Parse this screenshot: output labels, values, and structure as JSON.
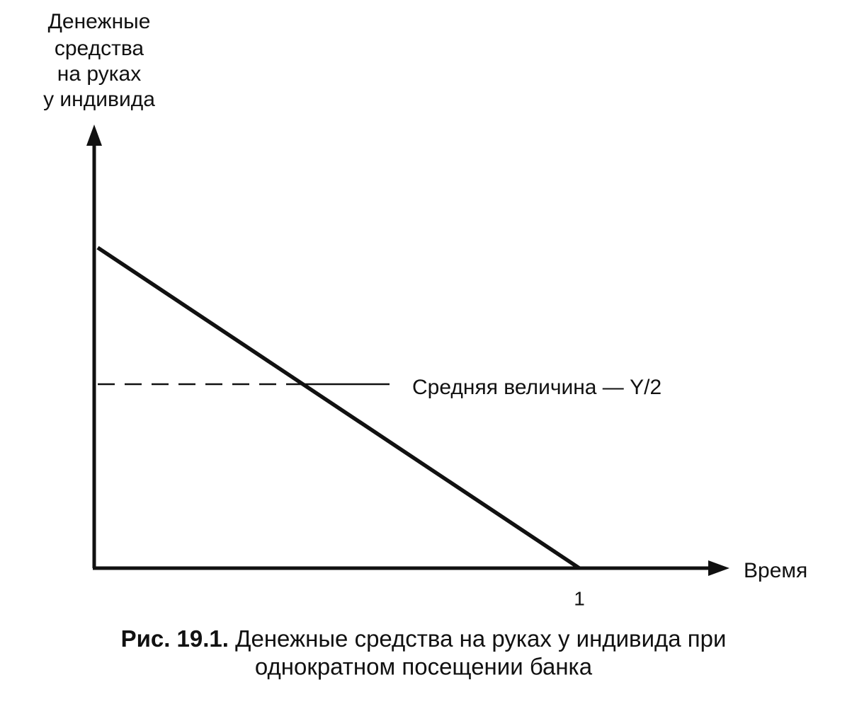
{
  "y_axis_label": [
    "Денежные",
    "средства",
    "на руках",
    "у индивида"
  ],
  "x_axis_label": "Время",
  "x_tick": "1",
  "annotation": "Средняя величина — Y/2",
  "caption": {
    "label": "Рис. 19.1.",
    "text": [
      "Денежные средства на руках у индивида при",
      "однократном посещении банка"
    ]
  }
}
